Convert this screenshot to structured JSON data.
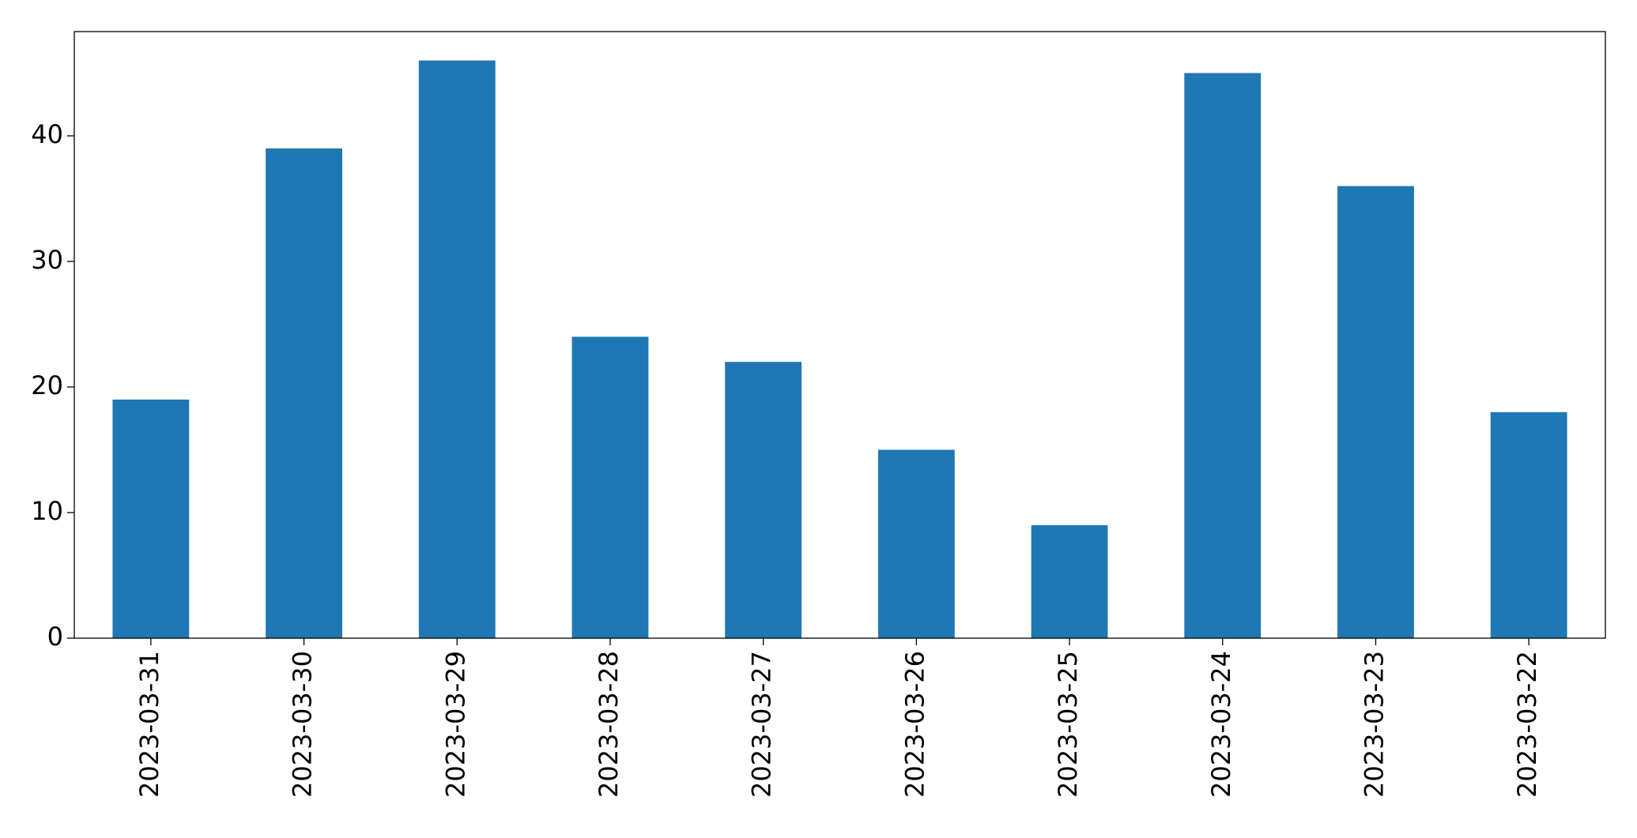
{
  "chart_data": {
    "type": "bar",
    "categories": [
      "2023-03-31",
      "2023-03-30",
      "2023-03-29",
      "2023-03-28",
      "2023-03-27",
      "2023-03-26",
      "2023-03-25",
      "2023-03-24",
      "2023-03-23",
      "2023-03-22"
    ],
    "values": [
      19,
      39,
      46,
      24,
      22,
      15,
      9,
      45,
      36,
      18
    ],
    "color": "#1f77b4",
    "ylim": [
      0,
      48.3
    ],
    "yticks": [
      0,
      10,
      20,
      30,
      40
    ],
    "grid": false
  }
}
